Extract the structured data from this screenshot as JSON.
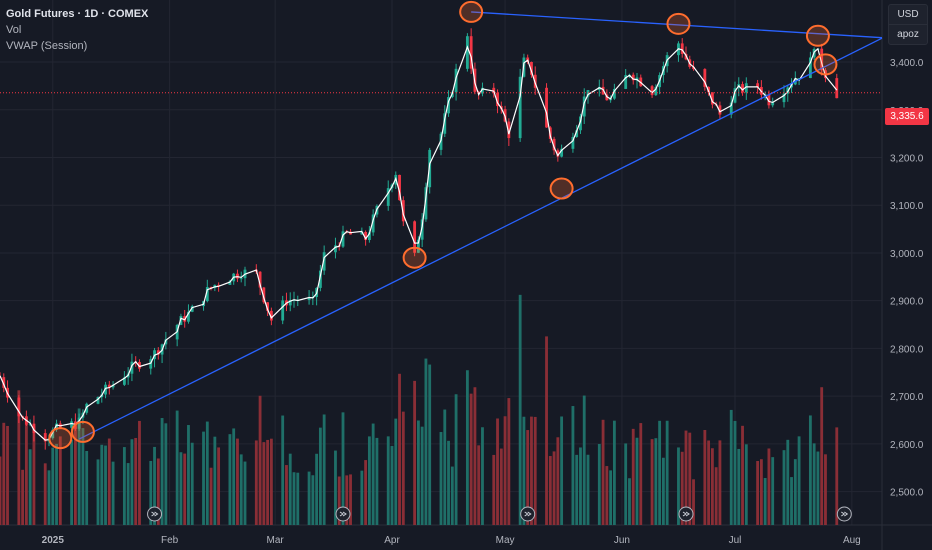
{
  "legend": {
    "title": "Gold Futures · 1D · COMEX",
    "line2": "Vol",
    "line3": "VWAP (Session)"
  },
  "currency": "USD",
  "scale_mode": "apoz",
  "last_price": "3,335.6",
  "colors": {
    "background": "#161a25",
    "up": "#22ab94",
    "down": "#f23645",
    "vol_up": "#1f6f68",
    "vol_down": "#8a2e36",
    "trendline": "#2962ff",
    "vwap": "#ffffff",
    "marker": "#ff6d2e",
    "grid": "#232632"
  },
  "chart_data": {
    "type": "candlestick",
    "title": "Gold Futures · 1D · COMEX",
    "y_axis": {
      "ticks": [
        "2,500.0",
        "2,600.0",
        "2,700.0",
        "2,800.0",
        "2,900.0",
        "3,000.0",
        "3,100.0",
        "3,200.0",
        "3,300.0",
        "3,400.0"
      ],
      "tick_values": [
        2500,
        2600,
        2700,
        2800,
        2900,
        3000,
        3100,
        3200,
        3300,
        3400
      ],
      "range": [
        2430,
        3530
      ]
    },
    "x_axis": {
      "ticks": [
        "2025",
        "Feb",
        "Mar",
        "Apr",
        "May",
        "Jun",
        "Jul",
        "Aug"
      ],
      "tick_dates": [
        "2025-01-01",
        "2025-02-01",
        "2025-03-01",
        "2025-04-01",
        "2025-05-01",
        "2025-06-01",
        "2025-07-01",
        "2025-08-01"
      ],
      "range": [
        "2024-12-18",
        "2025-08-09"
      ]
    },
    "price_path": [
      [
        "2024-12-18",
        2740
      ],
      [
        "2024-12-23",
        2660
      ],
      [
        "2024-12-30",
        2615
      ],
      [
        "2025-01-02",
        2630
      ],
      [
        "2025-01-08",
        2645
      ],
      [
        "2025-01-10",
        2680
      ],
      [
        "2025-01-17",
        2725
      ],
      [
        "2025-01-22",
        2760
      ],
      [
        "2025-01-28",
        2790
      ],
      [
        "2025-02-03",
        2850
      ],
      [
        "2025-02-07",
        2880
      ],
      [
        "2025-02-11",
        2920
      ],
      [
        "2025-02-14",
        2940
      ],
      [
        "2025-02-20",
        2960
      ],
      [
        "2025-02-24",
        2955
      ],
      [
        "2025-02-28",
        2860
      ],
      [
        "2025-03-04",
        2900
      ],
      [
        "2025-03-08",
        2905
      ],
      [
        "2025-03-11",
        2895
      ],
      [
        "2025-03-14",
        2995
      ],
      [
        "2025-03-20",
        3040
      ],
      [
        "2025-03-25",
        3030
      ],
      [
        "2025-03-28",
        3090
      ],
      [
        "2025-04-02",
        3170
      ],
      [
        "2025-04-04",
        3060
      ],
      [
        "2025-04-07",
        2990
      ],
      [
        "2025-04-09",
        3080
      ],
      [
        "2025-04-11",
        3220
      ],
      [
        "2025-04-14",
        3250
      ],
      [
        "2025-04-18",
        3380
      ],
      [
        "2025-04-21",
        3460
      ],
      [
        "2025-04-23",
        3330
      ],
      [
        "2025-04-28",
        3340
      ],
      [
        "2025-05-02",
        3250
      ],
      [
        "2025-05-06",
        3400
      ],
      [
        "2025-05-08",
        3380
      ],
      [
        "2025-05-12",
        3260
      ],
      [
        "2025-05-15",
        3200
      ],
      [
        "2025-05-20",
        3270
      ],
      [
        "2025-05-23",
        3350
      ],
      [
        "2025-05-29",
        3320
      ],
      [
        "2025-06-03",
        3380
      ],
      [
        "2025-06-09",
        3340
      ],
      [
        "2025-06-13",
        3410
      ],
      [
        "2025-06-16",
        3440
      ],
      [
        "2025-06-19",
        3390
      ],
      [
        "2025-06-24",
        3330
      ],
      [
        "2025-06-27",
        3290
      ],
      [
        "2025-07-01",
        3340
      ],
      [
        "2025-07-07",
        3350
      ],
      [
        "2025-07-10",
        3320
      ],
      [
        "2025-07-16",
        3360
      ],
      [
        "2025-07-21",
        3400
      ],
      [
        "2025-07-22",
        3440
      ],
      [
        "2025-07-24",
        3390
      ],
      [
        "2025-07-28",
        3335
      ]
    ],
    "last_price": 3335.6,
    "trendlines": [
      {
        "name": "support",
        "from": [
          "2025-01-08",
          2610
        ],
        "to": [
          "2025-08-09",
          3450
        ]
      },
      {
        "name": "resistance",
        "from": [
          "2025-04-22",
          3505
        ],
        "to": [
          "2025-08-09",
          3451
        ]
      }
    ],
    "marked_points": [
      [
        "2025-01-03",
        2612
      ],
      [
        "2025-01-09",
        2625
      ],
      [
        "2025-04-07",
        2990
      ],
      [
        "2025-04-22",
        3505
      ],
      [
        "2025-05-16",
        3135
      ],
      [
        "2025-06-16",
        3480
      ],
      [
        "2025-07-23",
        3455
      ],
      [
        "2025-07-25",
        3395
      ]
    ],
    "volume_pattern": "bars under price, colored by candle direction",
    "grid": true,
    "legend_position": "top-left"
  }
}
